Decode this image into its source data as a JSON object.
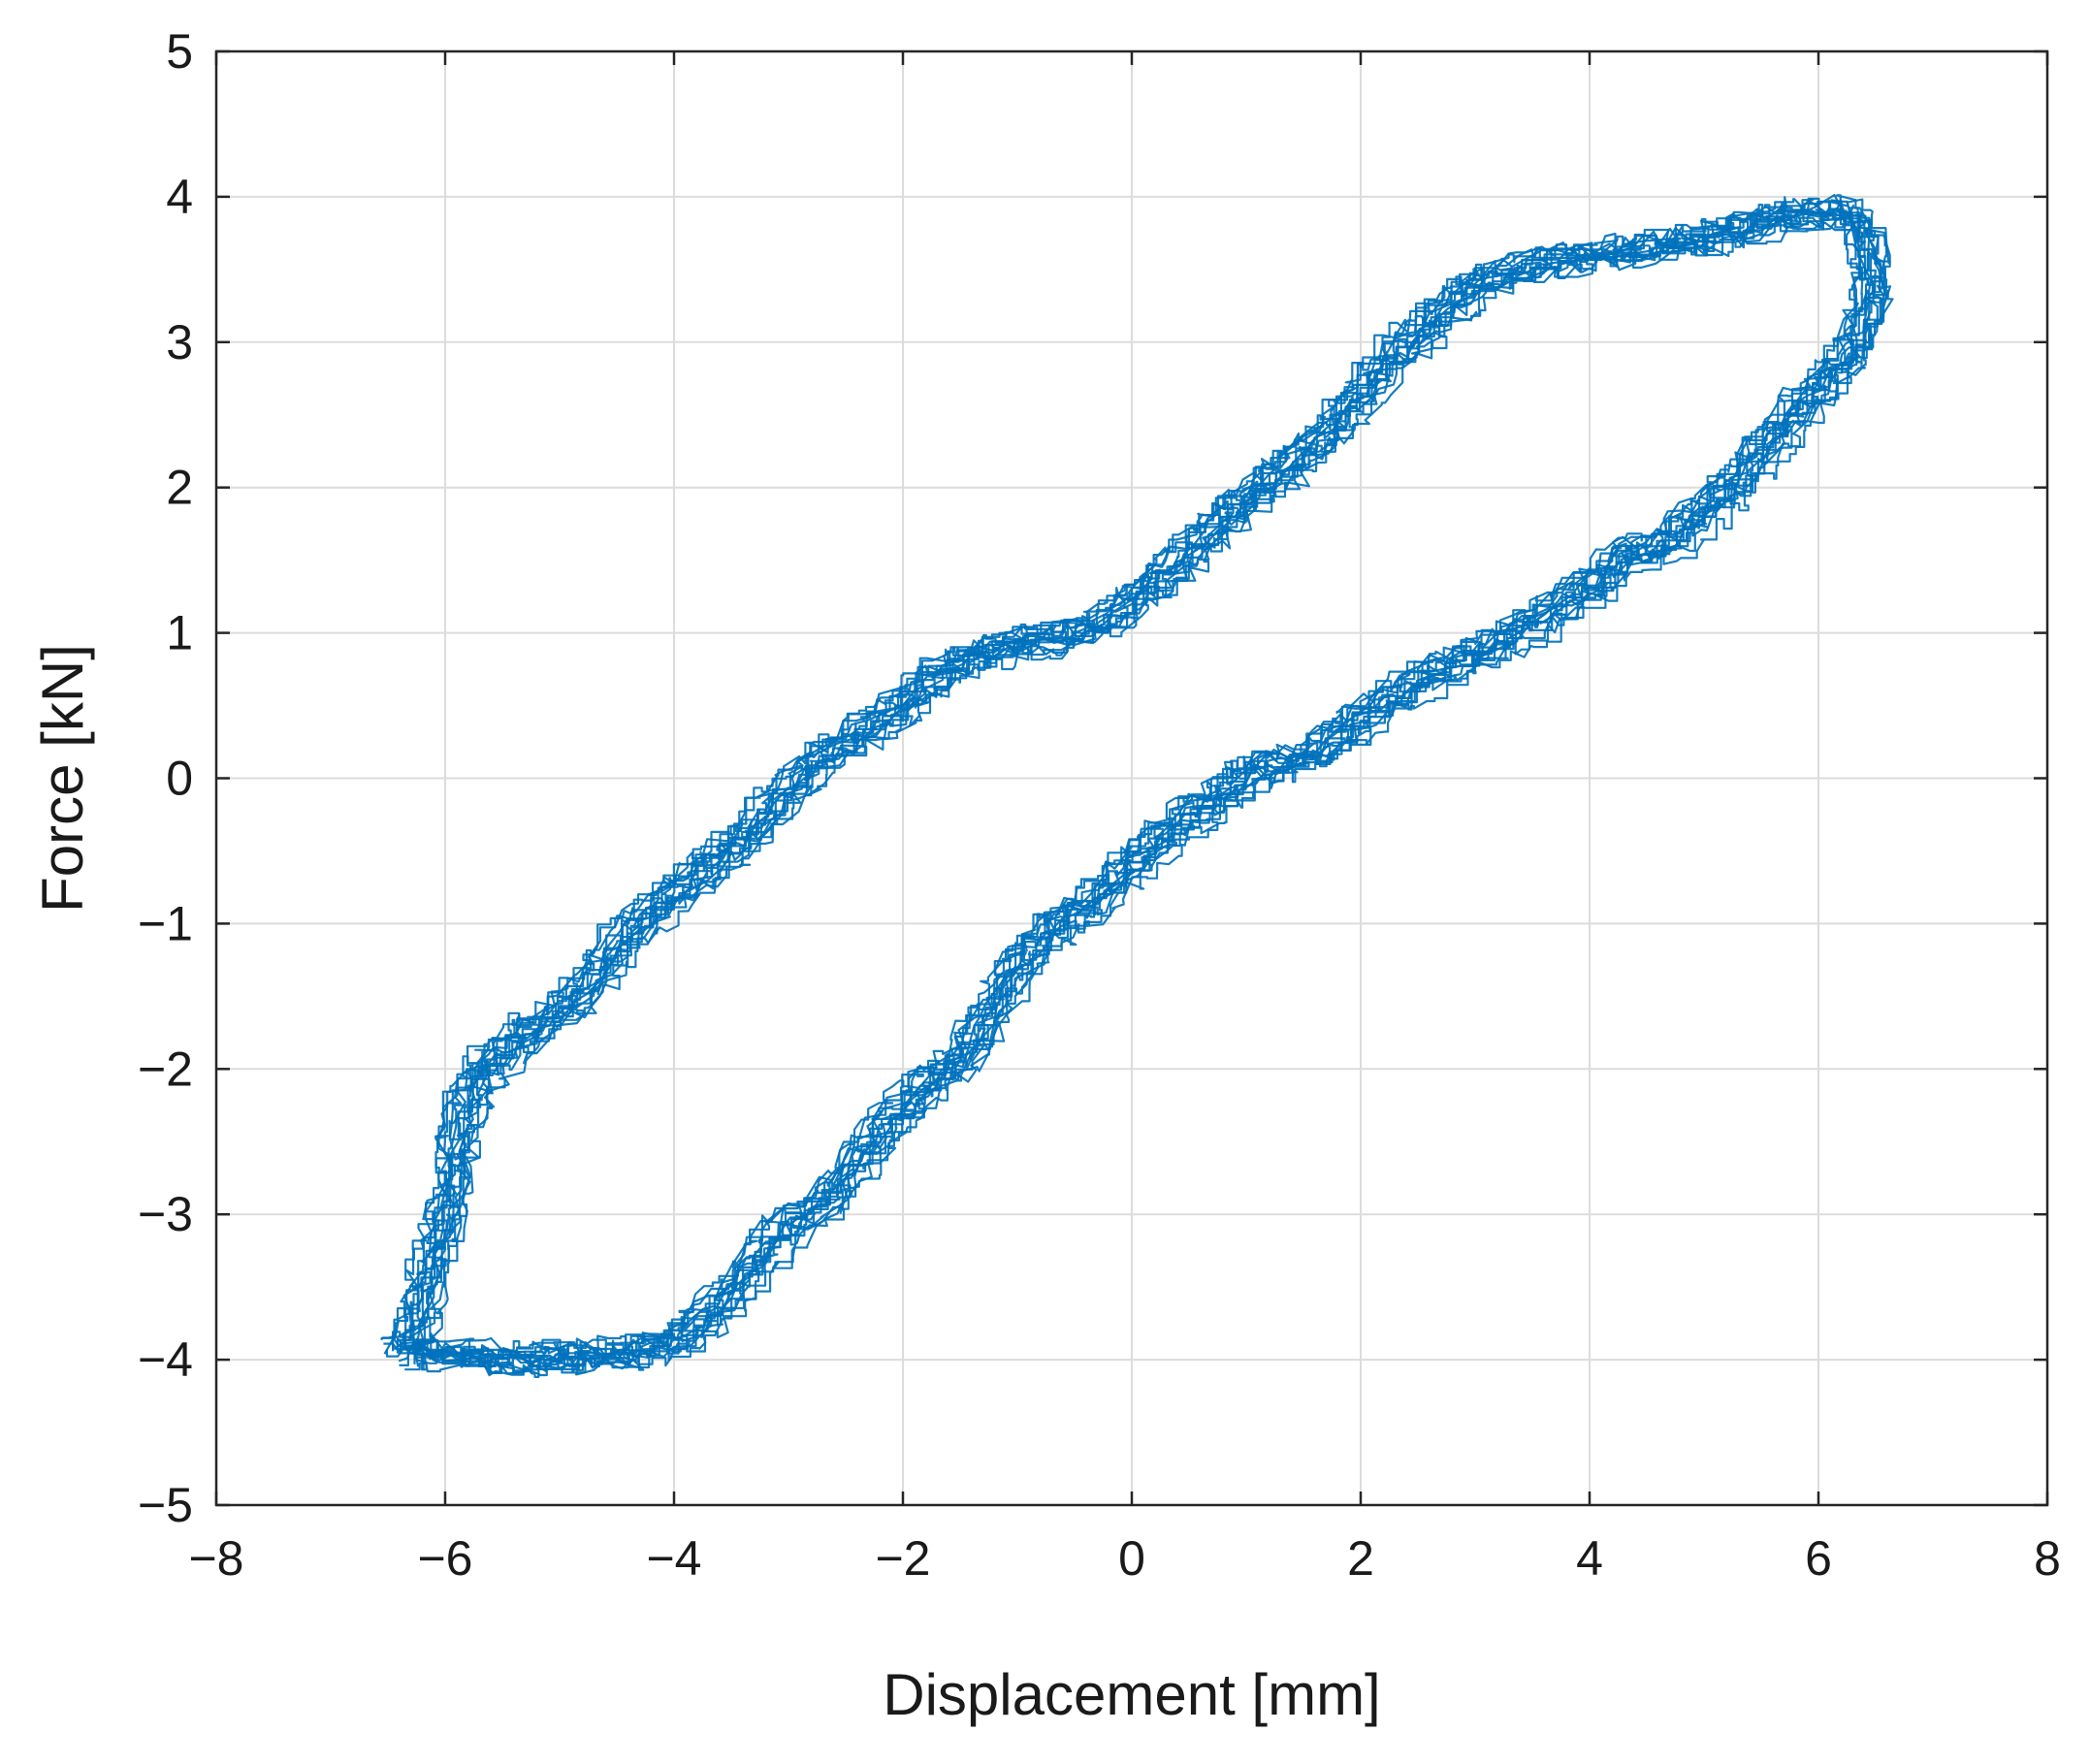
{
  "chart_data": {
    "type": "line",
    "title": "",
    "xlabel": "Displacement [mm]",
    "ylabel": "Force  [kN]",
    "xlim": [
      -8,
      8
    ],
    "ylim": [
      -5,
      5
    ],
    "xticks": [
      -8,
      -6,
      -4,
      -2,
      0,
      2,
      4,
      6,
      8
    ],
    "yticks": [
      -5,
      -4,
      -3,
      -2,
      -1,
      0,
      1,
      2,
      3,
      4,
      5
    ],
    "xtick_labels": [
      "−8",
      "−6",
      "−4",
      "−2",
      "0",
      "2",
      "4",
      "6",
      "8"
    ],
    "ytick_labels": [
      "−5",
      "−4",
      "−3",
      "−2",
      "−1",
      "0",
      "1",
      "2",
      "3",
      "4",
      "5"
    ],
    "grid": true,
    "legend": "none",
    "series_color": "#0072bd",
    "series": [
      {
        "name": "",
        "loading_branch": [
          [
            -6.4,
            -3.95
          ],
          [
            -6.1,
            -3.95
          ],
          [
            -5.8,
            -3.98
          ],
          [
            -5.2,
            -4.0
          ],
          [
            -4.8,
            -3.98
          ],
          [
            -4.4,
            -3.95
          ],
          [
            -4.0,
            -3.85
          ],
          [
            -3.6,
            -3.6
          ],
          [
            -3.3,
            -3.3
          ],
          [
            -3.0,
            -3.05
          ],
          [
            -2.7,
            -2.9
          ],
          [
            -2.4,
            -2.6
          ],
          [
            -2.1,
            -2.3
          ],
          [
            -1.8,
            -2.1
          ],
          [
            -1.5,
            -1.9
          ],
          [
            -1.2,
            -1.5
          ],
          [
            -0.9,
            -1.15
          ],
          [
            -0.6,
            -0.95
          ],
          [
            -0.3,
            -0.8
          ],
          [
            0.0,
            -0.55
          ],
          [
            0.3,
            -0.35
          ],
          [
            0.7,
            -0.15
          ],
          [
            1.0,
            0.05
          ],
          [
            1.3,
            0.1
          ],
          [
            1.6,
            0.2
          ],
          [
            2.0,
            0.45
          ],
          [
            2.4,
            0.65
          ],
          [
            2.8,
            0.8
          ],
          [
            3.2,
            0.95
          ],
          [
            3.6,
            1.15
          ],
          [
            4.0,
            1.35
          ],
          [
            4.3,
            1.55
          ],
          [
            4.6,
            1.6
          ],
          [
            4.9,
            1.8
          ],
          [
            5.2,
            2.0
          ],
          [
            5.5,
            2.3
          ],
          [
            5.8,
            2.55
          ],
          [
            6.1,
            2.8
          ],
          [
            6.3,
            3.0
          ],
          [
            6.4,
            3.25
          ],
          [
            6.45,
            3.45
          ],
          [
            6.4,
            3.7
          ],
          [
            6.3,
            3.88
          ]
        ],
        "unloading_branch": [
          [
            6.3,
            3.88
          ],
          [
            6.0,
            3.9
          ],
          [
            5.6,
            3.85
          ],
          [
            5.2,
            3.75
          ],
          [
            4.8,
            3.68
          ],
          [
            4.3,
            3.62
          ],
          [
            3.8,
            3.58
          ],
          [
            3.4,
            3.5
          ],
          [
            3.0,
            3.4
          ],
          [
            2.7,
            3.2
          ],
          [
            2.4,
            3.0
          ],
          [
            2.1,
            2.75
          ],
          [
            1.8,
            2.45
          ],
          [
            1.5,
            2.25
          ],
          [
            1.2,
            2.05
          ],
          [
            0.9,
            1.85
          ],
          [
            0.6,
            1.65
          ],
          [
            0.2,
            1.35
          ],
          [
            -0.2,
            1.1
          ],
          [
            -0.5,
            1.0
          ],
          [
            -0.8,
            0.95
          ],
          [
            -1.1,
            0.92
          ],
          [
            -1.5,
            0.8
          ],
          [
            -1.8,
            0.65
          ],
          [
            -2.1,
            0.45
          ],
          [
            -2.4,
            0.3
          ],
          [
            -2.7,
            0.15
          ],
          [
            -3.0,
            -0.05
          ],
          [
            -3.3,
            -0.35
          ],
          [
            -3.7,
            -0.6
          ],
          [
            -4.0,
            -0.8
          ],
          [
            -4.4,
            -1.05
          ],
          [
            -4.7,
            -1.35
          ],
          [
            -5.0,
            -1.6
          ],
          [
            -5.3,
            -1.75
          ],
          [
            -5.6,
            -1.95
          ],
          [
            -5.8,
            -2.15
          ],
          [
            -5.9,
            -2.4
          ],
          [
            -5.95,
            -2.8
          ],
          [
            -6.05,
            -3.1
          ],
          [
            -6.15,
            -3.4
          ],
          [
            -6.25,
            -3.7
          ],
          [
            -6.4,
            -3.95
          ]
        ]
      }
    ]
  }
}
